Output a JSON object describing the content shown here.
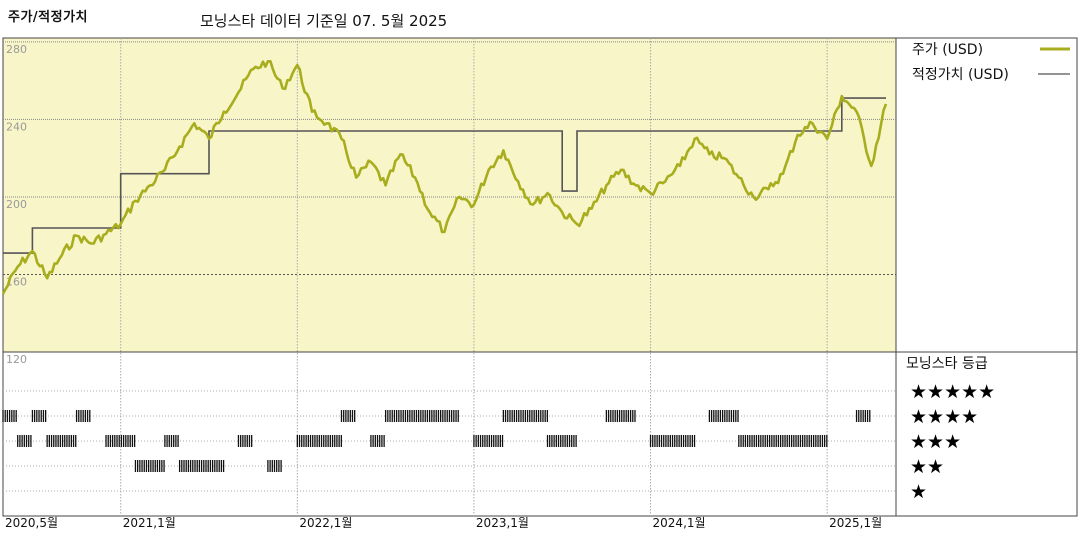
{
  "header": {
    "title": "주가/적정가치",
    "subtitle": "모닝스타 데이터 기준일 07. 5월 2025"
  },
  "legend": {
    "price_label": "주가 (USD)",
    "fair_label": "적정가치 (USD)",
    "rating_title": "모닝스타 등급",
    "stars": [
      "★★★★★",
      "★★★★",
      "★★★",
      "★★",
      "★"
    ]
  },
  "colors": {
    "price": "#a8ad1e",
    "fair": "#555555",
    "bg": "#f8f5c8",
    "grid": "#999999"
  },
  "chart_data": {
    "type": "line",
    "title": "주가/적정가치",
    "x_start": "2020-05",
    "x_end": "2025-05",
    "xticks": [
      {
        "label": "2020,5월",
        "date": "2020-05"
      },
      {
        "label": "2021,1월",
        "date": "2021-01"
      },
      {
        "label": "2022,1월",
        "date": "2022-01"
      },
      {
        "label": "2023,1월",
        "date": "2023-01"
      },
      {
        "label": "2024,1월",
        "date": "2024-01"
      },
      {
        "label": "2025,1월",
        "date": "2025-01"
      }
    ],
    "yticks": [
      120,
      160,
      200,
      240,
      280
    ],
    "ylim": [
      120,
      282
    ],
    "series": [
      {
        "name": "주가 (USD)",
        "points": [
          [
            "2020-05",
            150
          ],
          [
            "2020-06",
            164
          ],
          [
            "2020-07",
            172
          ],
          [
            "2020-08",
            158
          ],
          [
            "2020-09",
            170
          ],
          [
            "2020-10",
            180
          ],
          [
            "2020-11",
            176
          ],
          [
            "2020-12",
            181
          ],
          [
            "2021-01",
            186
          ],
          [
            "2021-02",
            198
          ],
          [
            "2021-03",
            206
          ],
          [
            "2021-04",
            214
          ],
          [
            "2021-05",
            226
          ],
          [
            "2021-06",
            238
          ],
          [
            "2021-07",
            230
          ],
          [
            "2021-08",
            244
          ],
          [
            "2021-09",
            254
          ],
          [
            "2021-10",
            266
          ],
          [
            "2021-11",
            270
          ],
          [
            "2021-12",
            256
          ],
          [
            "2022-01",
            268
          ],
          [
            "2022-02",
            244
          ],
          [
            "2022-03",
            238
          ],
          [
            "2022-04",
            230
          ],
          [
            "2022-05",
            210
          ],
          [
            "2022-06",
            218
          ],
          [
            "2022-07",
            206
          ],
          [
            "2022-08",
            222
          ],
          [
            "2022-09",
            210
          ],
          [
            "2022-10",
            192
          ],
          [
            "2022-11",
            182
          ],
          [
            "2022-12",
            200
          ],
          [
            "2023-01",
            196
          ],
          [
            "2023-02",
            214
          ],
          [
            "2023-03",
            224
          ],
          [
            "2023-04",
            208
          ],
          [
            "2023-05",
            196
          ],
          [
            "2023-06",
            202
          ],
          [
            "2023-07",
            192
          ],
          [
            "2023-08",
            186
          ],
          [
            "2023-09",
            194
          ],
          [
            "2023-10",
            206
          ],
          [
            "2023-11",
            214
          ],
          [
            "2023-12",
            206
          ],
          [
            "2024-01",
            202
          ],
          [
            "2024-02",
            208
          ],
          [
            "2024-03",
            216
          ],
          [
            "2024-04",
            230
          ],
          [
            "2024-05",
            222
          ],
          [
            "2024-06",
            220
          ],
          [
            "2024-07",
            210
          ],
          [
            "2024-08",
            200
          ],
          [
            "2024-09",
            204
          ],
          [
            "2024-10",
            212
          ],
          [
            "2024-11",
            232
          ],
          [
            "2024-12",
            238
          ],
          [
            "2025-01",
            230
          ],
          [
            "2025-02",
            252
          ],
          [
            "2025-03",
            244
          ],
          [
            "2025-04",
            216
          ],
          [
            "2025-05",
            248
          ]
        ]
      },
      {
        "name": "적정가치 (USD)",
        "step": true,
        "points": [
          [
            "2020-05",
            171
          ],
          [
            "2020-07",
            171
          ],
          [
            "2020-07",
            184
          ],
          [
            "2021-01",
            184
          ],
          [
            "2021-01",
            212
          ],
          [
            "2021-07",
            212
          ],
          [
            "2021-07",
            234
          ],
          [
            "2022-01",
            234
          ],
          [
            "2023-07",
            234
          ],
          [
            "2023-07",
            203
          ],
          [
            "2023-08",
            203
          ],
          [
            "2023-08",
            234
          ],
          [
            "2025-02",
            234
          ],
          [
            "2025-02",
            251
          ],
          [
            "2025-05",
            251
          ]
        ]
      }
    ],
    "ratings": [
      [
        4,
        "2020-05",
        "2020-06"
      ],
      [
        4,
        "2020-07",
        "2020-08"
      ],
      [
        4,
        "2020-10",
        "2020-11"
      ],
      [
        3,
        "2020-06",
        "2020-07"
      ],
      [
        3,
        "2020-08",
        "2020-10"
      ],
      [
        3,
        "2020-12",
        "2021-02"
      ],
      [
        3,
        "2021-04",
        "2021-05"
      ],
      [
        3,
        "2021-09",
        "2021-10"
      ],
      [
        3,
        "2022-01",
        "2022-04"
      ],
      [
        3,
        "2022-06",
        "2022-07"
      ],
      [
        3,
        "2023-01",
        "2023-03"
      ],
      [
        3,
        "2023-06",
        "2023-08"
      ],
      [
        3,
        "2024-01",
        "2024-04"
      ],
      [
        3,
        "2024-07",
        "2025-01"
      ],
      [
        2,
        "2021-02",
        "2021-04"
      ],
      [
        2,
        "2021-05",
        "2021-08"
      ],
      [
        2,
        "2021-11",
        "2021-12"
      ],
      [
        4,
        "2022-04",
        "2022-05"
      ],
      [
        4,
        "2022-07",
        "2022-12"
      ],
      [
        4,
        "2023-03",
        "2023-06"
      ],
      [
        4,
        "2023-10",
        "2023-12"
      ],
      [
        4,
        "2024-05",
        "2024-07"
      ],
      [
        4,
        "2025-03",
        "2025-04"
      ]
    ]
  }
}
